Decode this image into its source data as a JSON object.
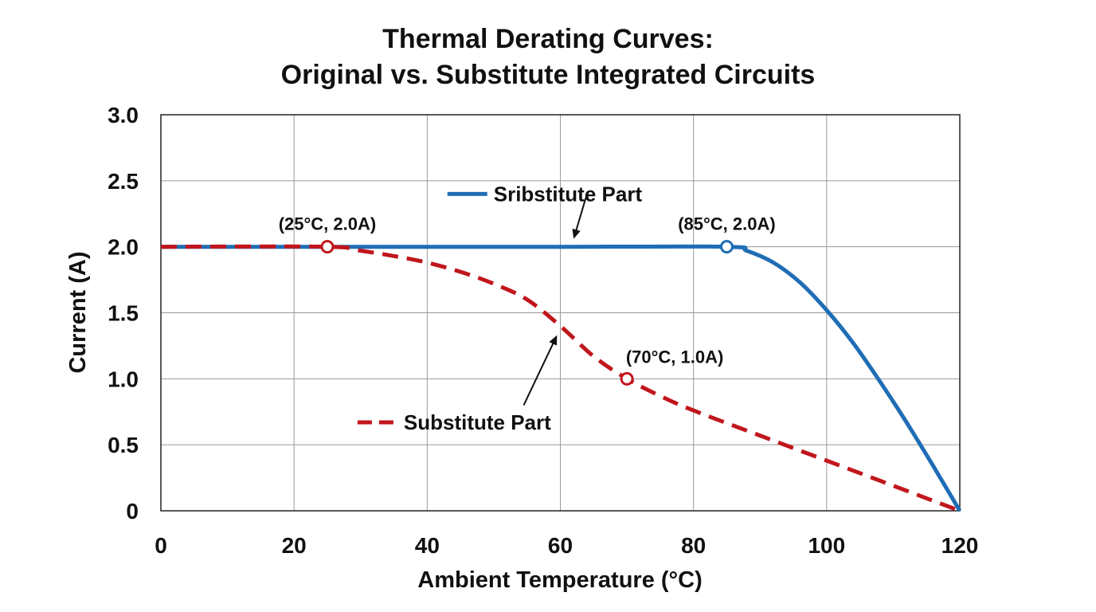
{
  "chart_data": {
    "type": "line",
    "title": [
      "Thermal Derating Curves:",
      "Original vs. Substitute Integrated Circuits"
    ],
    "xlabel": "Ambient Temperature (°C)",
    "ylabel": "Current (A)",
    "xlim": [
      0,
      120
    ],
    "ylim": [
      0,
      3.0
    ],
    "xticks": [
      0,
      20,
      40,
      60,
      80,
      100,
      120
    ],
    "xtick_labels": [
      "0",
      "20",
      "40",
      "60",
      "80",
      "100",
      "120"
    ],
    "yticks": [
      0,
      0.5,
      1.0,
      1.5,
      2.0,
      2.5,
      3.0
    ],
    "ytick_labels": [
      "0",
      "0.5",
      "1.0",
      "1.5",
      "2.0",
      "2.5",
      "3.0"
    ],
    "grid": true,
    "series": [
      {
        "name": "Sribstitute Part",
        "color": "#1f6db5",
        "style": "solid",
        "x": [
          0,
          20,
          40,
          60,
          85,
          88,
          92,
          96,
          100,
          104,
          108,
          112,
          116,
          120
        ],
        "y": [
          2.0,
          2.0,
          2.0,
          2.0,
          2.0,
          1.97,
          1.88,
          1.73,
          1.52,
          1.27,
          0.98,
          0.67,
          0.34,
          0.0
        ]
      },
      {
        "name": "Substitute Part",
        "color": "#c0161c",
        "style": "dashed",
        "x": [
          0,
          25,
          30,
          35,
          40,
          45,
          50,
          55,
          60,
          65,
          70,
          75,
          80,
          90,
          100,
          110,
          120
        ],
        "y": [
          2.0,
          2.0,
          1.97,
          1.93,
          1.88,
          1.81,
          1.72,
          1.6,
          1.4,
          1.17,
          1.0,
          0.87,
          0.76,
          0.57,
          0.38,
          0.19,
          0.0
        ]
      }
    ],
    "markers": [
      {
        "x": 25,
        "y": 2.0,
        "label": "(25°C, 2.0A)",
        "color": "#c0161c"
      },
      {
        "x": 85,
        "y": 2.0,
        "label": "(85°C, 2.0A)",
        "color": "#1f6db5"
      },
      {
        "x": 70,
        "y": 1.0,
        "label": "(70°C, 1.0A)",
        "color": "#c0161c"
      }
    ],
    "annotation_arrows": [
      {
        "from": [
          64,
          2.4
        ],
        "to": [
          62,
          2.06
        ]
      },
      {
        "from": [
          54.5,
          0.8
        ],
        "to": [
          59.5,
          1.33
        ]
      }
    ],
    "legend_entries": [
      {
        "text": "Sribstitute Part",
        "style": "solid",
        "color": "#1f6db5",
        "anchor_x": 49.5,
        "anchor_y": 2.4
      },
      {
        "text": "Substitute Part",
        "style": "dashed",
        "color": "#c0161c",
        "anchor_x": 36,
        "anchor_y": 0.67
      }
    ]
  }
}
